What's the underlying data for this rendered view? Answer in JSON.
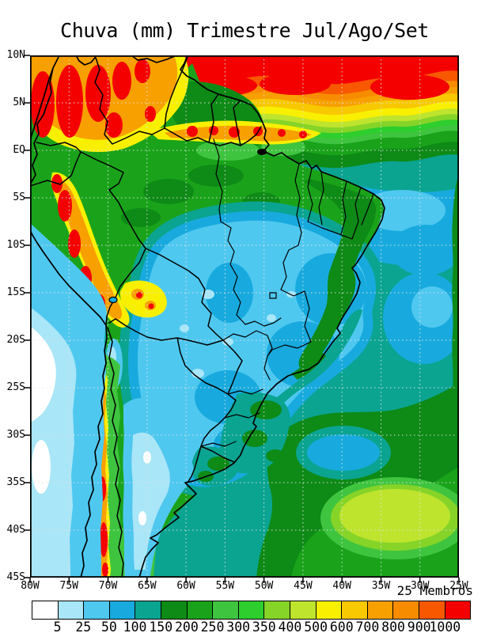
{
  "title": "Chuva (mm) Trimestre Jul/Ago/Set",
  "map": {
    "ensemble_label": "25 Membros",
    "lat_labels": [
      "10N",
      "5N",
      "EQ",
      "5S",
      "10S",
      "15S",
      "20S",
      "25S",
      "30S",
      "35S",
      "40S",
      "45S"
    ],
    "lon_labels": [
      "80W",
      "75W",
      "70W",
      "65W",
      "60W",
      "55W",
      "50W",
      "45W",
      "40W",
      "35W",
      "30W",
      "25W"
    ]
  },
  "colorbar": {
    "values": [
      "5",
      "25",
      "50",
      "100",
      "150",
      "200",
      "250",
      "300",
      "350",
      "400",
      "500",
      "600",
      "700",
      "800",
      "900",
      "1000"
    ],
    "colors": [
      "#ffffff",
      "#a9e6f7",
      "#4fc8f0",
      "#18aade",
      "#0aa491",
      "#0e8a16",
      "#1aa31a",
      "#3fc43f",
      "#2dce2d",
      "#86d428",
      "#bee42e",
      "#f8f000",
      "#f8c800",
      "#f8a000",
      "#f88c00",
      "#f85800",
      "#f40000"
    ]
  },
  "chart_data": {
    "type": "heatmap",
    "title": "Chuva (mm) Trimestre Jul/Ago/Set",
    "variable": "Chuva (rainfall)",
    "units": "mm",
    "period": "Trimestre Jul/Ago/Set",
    "ensemble_members": 25,
    "domain": {
      "lat_range": [
        "10N",
        "45S"
      ],
      "lon_range": [
        "80W",
        "25W"
      ]
    },
    "graticule": "dotted grid every 5 degrees",
    "contour_levels_mm": [
      5,
      25,
      50,
      100,
      150,
      200,
      250,
      300,
      350,
      400,
      500,
      600,
      700,
      800,
      900,
      1000
    ],
    "palette": [
      "#ffffff",
      "#a9e6f7",
      "#4fc8f0",
      "#18aade",
      "#0aa491",
      "#0e8a16",
      "#1aa31a",
      "#3fc43f",
      "#2dce2d",
      "#86d428",
      "#bee42e",
      "#f8f000",
      "#f8c800",
      "#f8a000",
      "#f88c00",
      "#f85800",
      "#f40000"
    ],
    "features": [
      "ITCZ band exceeding 900-1000 mm along the northern edge (10N-7N) across the tropical Atlantic, grading southward through orange/yellow/green to 150-250 mm near 2N",
      "Maxima above 1000 mm (red) over western Colombia, Venezuela highlands and the Venezuela/Guyana border zone",
      "Narrow 600-1000+ mm bands (yellow/orange/red) along the Andes of Peru, Bolivia and central-south Chile",
      "Large dry-season minimum of 25-100 mm (light blue) over central Brazil, Paraguay and northern Argentina",
      "Below 5 mm (white) over the Pacific off the Peru/Chile coast and interior Argentina spots",
      "NE Brazil coastal strip 200-300 mm (dark green); adjacent Atlantic 100-200 mm (teal/cyan)",
      "South Atlantic 200-500 mm with a 400-500 mm (yellow-green) patch near 38-42S, 28-37W"
    ]
  }
}
